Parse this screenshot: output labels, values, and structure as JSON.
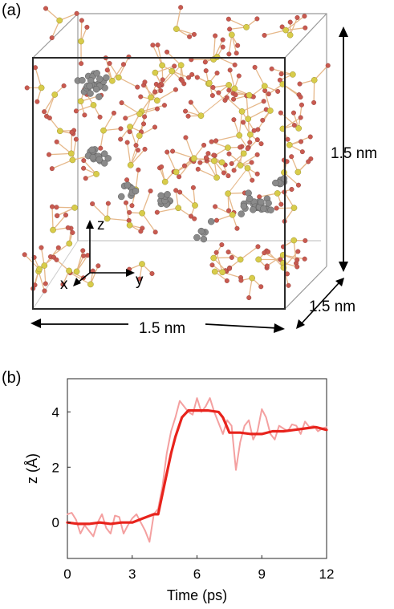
{
  "panel_a": {
    "label": "(a)",
    "dim_vertical": "1.5 nm",
    "dim_depth": "1.5 nm",
    "dim_horizontal": "1.5 nm",
    "axis_z": "z",
    "axis_x": "x",
    "axis_y": "y",
    "colors": {
      "si_atom": "#d8cc4a",
      "o_atom": "#c95a50",
      "bond": "#e6b88a",
      "molecule": "#8a8a8a"
    }
  },
  "panel_b": {
    "label": "(b)"
  },
  "chart_data": {
    "type": "line",
    "xlabel": "Time (ps)",
    "ylabel": "z (Å)",
    "xlim": [
      0,
      12
    ],
    "ylim": [
      -1.3,
      5.2
    ],
    "xticks": [
      0,
      3,
      6,
      9,
      12
    ],
    "yticks": [
      0,
      2,
      4
    ],
    "grid": false,
    "series": [
      {
        "role": "raw",
        "color": "#f4a0a0",
        "x": [
          0,
          0.2,
          0.4,
          0.6,
          0.8,
          1.0,
          1.2,
          1.4,
          1.6,
          1.8,
          2.0,
          2.2,
          2.4,
          2.6,
          2.8,
          3.0,
          3.2,
          3.4,
          3.6,
          3.8,
          4.0,
          4.2,
          4.4,
          4.6,
          4.8,
          5.0,
          5.2,
          5.4,
          5.6,
          5.8,
          6.0,
          6.2,
          6.4,
          6.6,
          6.8,
          7.0,
          7.2,
          7.4,
          7.6,
          7.8,
          8.0,
          8.2,
          8.4,
          8.6,
          8.8,
          9.0,
          9.2,
          9.4,
          9.6,
          9.8,
          10.0,
          10.2,
          10.4,
          10.6,
          10.8,
          11.0,
          11.2,
          11.4,
          11.6,
          11.8,
          12.0
        ],
        "y": [
          0.3,
          0.35,
          0.1,
          -0.4,
          -0.1,
          -0.3,
          -0.5,
          0.0,
          0.3,
          -0.2,
          -0.4,
          0.25,
          0.2,
          -0.4,
          -0.1,
          0.15,
          0.3,
          0.0,
          -0.3,
          -0.7,
          0.3,
          0.5,
          1.3,
          2.5,
          3.3,
          3.8,
          4.4,
          4.2,
          4.0,
          3.9,
          4.5,
          4.0,
          4.2,
          4.5,
          4.0,
          3.6,
          3.2,
          3.7,
          3.5,
          1.9,
          2.9,
          3.5,
          3.7,
          3.0,
          3.3,
          4.1,
          3.8,
          3.2,
          3.0,
          3.5,
          3.4,
          3.3,
          3.55,
          3.5,
          3.2,
          3.65,
          3.45,
          3.5,
          3.3,
          3.4,
          3.45
        ]
      },
      {
        "role": "smoothed",
        "color": "#e8231c",
        "x": [
          0,
          0.5,
          1.0,
          1.5,
          2.0,
          2.5,
          3.0,
          3.5,
          4.0,
          4.2,
          4.5,
          4.8,
          5.0,
          5.3,
          5.6,
          6.0,
          6.5,
          7.0,
          7.2,
          7.5,
          8.0,
          8.5,
          9.0,
          9.5,
          10.0,
          10.5,
          11.0,
          11.5,
          12.0
        ],
        "y": [
          0.0,
          -0.05,
          -0.05,
          0.0,
          -0.05,
          0.0,
          0.0,
          0.15,
          0.3,
          0.3,
          1.4,
          2.5,
          3.1,
          3.8,
          4.05,
          4.05,
          4.05,
          4.0,
          3.8,
          3.25,
          3.25,
          3.2,
          3.2,
          3.3,
          3.3,
          3.35,
          3.4,
          3.45,
          3.35
        ]
      }
    ]
  }
}
